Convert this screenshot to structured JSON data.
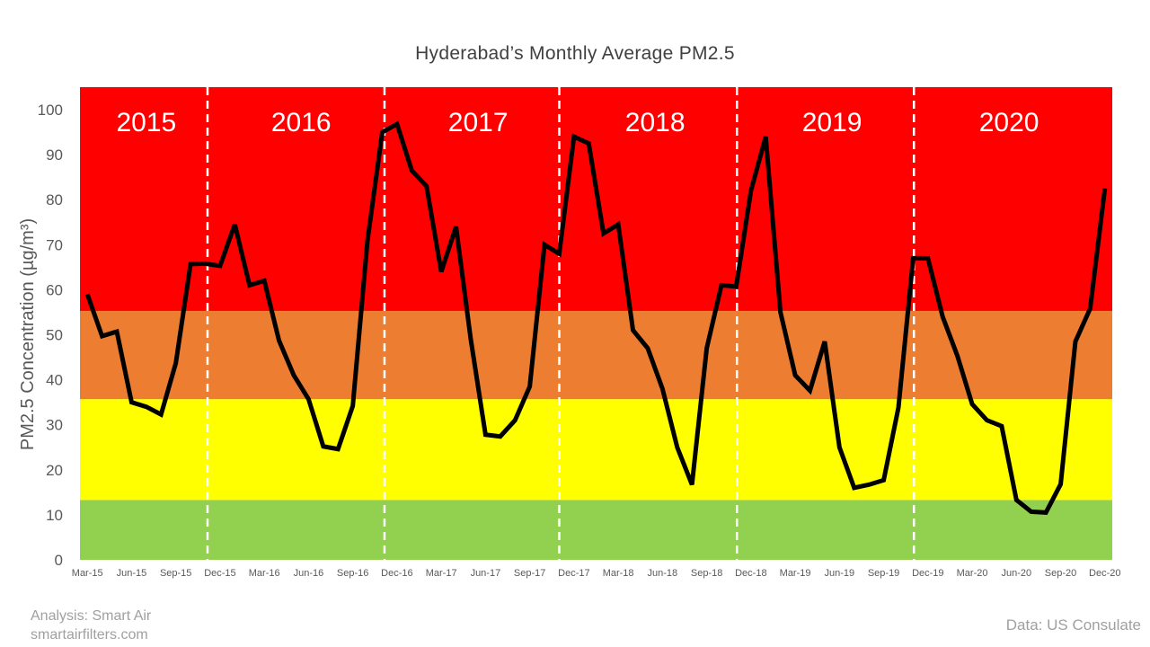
{
  "credits": {
    "analysis": "Analysis: Smart Air",
    "site": "smartairfilters.com",
    "data_source": "Data: US Consulate"
  },
  "bands": [
    {
      "name": "green",
      "from": 0,
      "to": 13.3,
      "color": "#92d050"
    },
    {
      "name": "yellow",
      "from": 13.3,
      "to": 35.7,
      "color": "#ffff00"
    },
    {
      "name": "orange",
      "from": 35.7,
      "to": 55.3,
      "color": "#ed7d31"
    },
    {
      "name": "red",
      "from": 55.3,
      "to": 105,
      "color": "#ff0000"
    }
  ],
  "year_labels": [
    {
      "text": "2015",
      "start": 0,
      "end": 9
    },
    {
      "text": "2016",
      "start": 9,
      "end": 21
    },
    {
      "text": "2017",
      "start": 21,
      "end": 33
    },
    {
      "text": "2018",
      "start": 33,
      "end": 45
    },
    {
      "text": "2019",
      "start": 45,
      "end": 57
    },
    {
      "text": "2020",
      "start": 57,
      "end": 69
    }
  ],
  "year_dividers": [
    8.65,
    20.65,
    32.5,
    44.55,
    56.55
  ],
  "line_color": "#000000",
  "chart_data": {
    "type": "line",
    "title": "Hyderabad’s Monthly Average PM2.5",
    "ylabel": "PM2.5 Concentration (µg/m³)",
    "xlabel": "",
    "ylim": [
      0,
      105
    ],
    "yticks": [
      0,
      10,
      20,
      30,
      40,
      50,
      60,
      70,
      80,
      90,
      100
    ],
    "grid": false,
    "x_tick_labels": [
      {
        "index": 0,
        "label": "Mar-15"
      },
      {
        "index": 3,
        "label": "Jun-15"
      },
      {
        "index": 6,
        "label": "Sep-15"
      },
      {
        "index": 9,
        "label": "Dec-15"
      },
      {
        "index": 12,
        "label": "Mar-16"
      },
      {
        "index": 15,
        "label": "Jun-16"
      },
      {
        "index": 18,
        "label": "Sep-16"
      },
      {
        "index": 21,
        "label": "Dec-16"
      },
      {
        "index": 24,
        "label": "Mar-17"
      },
      {
        "index": 27,
        "label": "Jun-17"
      },
      {
        "index": 30,
        "label": "Sep-17"
      },
      {
        "index": 33,
        "label": "Dec-17"
      },
      {
        "index": 36,
        "label": "Mar-18"
      },
      {
        "index": 39,
        "label": "Jun-18"
      },
      {
        "index": 42,
        "label": "Sep-18"
      },
      {
        "index": 45,
        "label": "Dec-18"
      },
      {
        "index": 48,
        "label": "Mar-19"
      },
      {
        "index": 51,
        "label": "Jun-19"
      },
      {
        "index": 54,
        "label": "Sep-19"
      },
      {
        "index": 57,
        "label": "Dec-19"
      },
      {
        "index": 60,
        "label": "Mar-20"
      },
      {
        "index": 63,
        "label": "Jun-20"
      },
      {
        "index": 66,
        "label": "Sep-20"
      },
      {
        "index": 69,
        "label": "Dec-20"
      }
    ],
    "x": [
      "Mar-15",
      "Apr-15",
      "May-15",
      "Jun-15",
      "Jul-15",
      "Aug-15",
      "Sep-15",
      "Oct-15",
      "Nov-15",
      "Dec-15",
      "Jan-16",
      "Feb-16",
      "Mar-16",
      "Apr-16",
      "May-16",
      "Jun-16",
      "Jul-16",
      "Aug-16",
      "Sep-16",
      "Oct-16",
      "Nov-16",
      "Dec-16",
      "Jan-17",
      "Feb-17",
      "Mar-17",
      "Apr-17",
      "May-17",
      "Jun-17",
      "Jul-17",
      "Aug-17",
      "Sep-17",
      "Oct-17",
      "Nov-17",
      "Dec-17",
      "Jan-18",
      "Feb-18",
      "Mar-18",
      "Apr-18",
      "May-18",
      "Jun-18",
      "Jul-18",
      "Aug-18",
      "Sep-18",
      "Oct-18",
      "Nov-18",
      "Dec-18",
      "Jan-19",
      "Feb-19",
      "Mar-19",
      "Apr-19",
      "May-19",
      "Jun-19",
      "Jul-19",
      "Aug-19",
      "Sep-19",
      "Oct-19",
      "Nov-19",
      "Dec-19",
      "Jan-20",
      "Feb-20",
      "Mar-20",
      "Apr-20",
      "May-20",
      "Jun-20",
      "Jul-20",
      "Aug-20",
      "Sep-20",
      "Oct-20",
      "Nov-20",
      "Dec-20"
    ],
    "series": [
      {
        "values": [
          59,
          49.7,
          50.7,
          35,
          34,
          32.3,
          43.7,
          65.7,
          65.8,
          65.3,
          74.5,
          61,
          62,
          48.7,
          41,
          35.7,
          25.2,
          24.6,
          34.2,
          71,
          95,
          96.8,
          86.5,
          83,
          64,
          74,
          49,
          27.8,
          27.4,
          31,
          38.5,
          70,
          68,
          94,
          92.5,
          72.5,
          74.5,
          51,
          47,
          38,
          25,
          16.7,
          47,
          61,
          60.7,
          82,
          94,
          55,
          41,
          37.6,
          48.5,
          25,
          16,
          16.7,
          17.7,
          33.8,
          67,
          67,
          54,
          45.3,
          34.6,
          31,
          29.7,
          13.3,
          10.7,
          10.5,
          16.8,
          48.5,
          55.8,
          82.5
        ]
      }
    ]
  }
}
